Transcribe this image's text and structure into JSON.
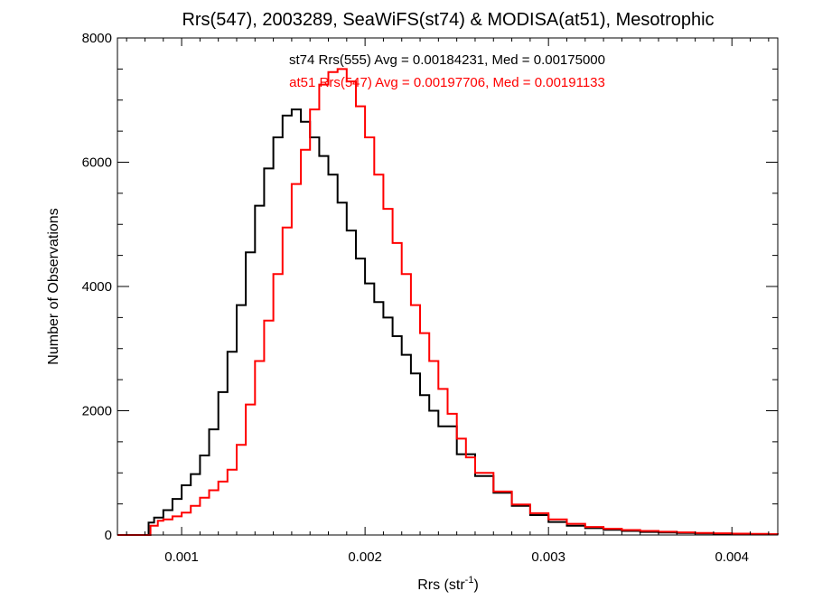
{
  "chart_data": {
    "type": "line",
    "step": true,
    "title": "Rrs(547), 2003289, SeaWiFS(st74) & MODISA(at51), Mesotrophic",
    "xlabel": {
      "base": "Rrs (str",
      "sup": "-1",
      "end": ")"
    },
    "ylabel": "Number of Observations",
    "xlim": [
      0.00065,
      0.00425
    ],
    "ylim": [
      0,
      8000
    ],
    "xticks": [
      {
        "value": 0.001,
        "label": "0.001"
      },
      {
        "value": 0.002,
        "label": "0.002"
      },
      {
        "value": 0.003,
        "label": "0.003"
      },
      {
        "value": 0.004,
        "label": "0.004"
      }
    ],
    "yticks": [
      {
        "value": 0,
        "label": "0"
      },
      {
        "value": 2000,
        "label": "2000"
      },
      {
        "value": 4000,
        "label": "4000"
      },
      {
        "value": 6000,
        "label": "6000"
      },
      {
        "value": 8000,
        "label": "8000"
      }
    ],
    "grid": false,
    "annotations": [
      {
        "text": "st74 Rrs(555) Avg = 0.00184231, Med = 0.00175000",
        "color": "#000000"
      },
      {
        "text": "at51 Rrs(547) Avg = 0.00197706, Med = 0.00191133",
        "color": "#ff0000"
      }
    ],
    "series": [
      {
        "color": "#000000",
        "x": [
          0.00065,
          0.0008,
          0.00082,
          0.00085,
          0.0009,
          0.00095,
          0.001,
          0.00105,
          0.0011,
          0.00115,
          0.0012,
          0.00125,
          0.0013,
          0.00135,
          0.0014,
          0.00145,
          0.0015,
          0.00155,
          0.0016,
          0.00165,
          0.0017,
          0.00175,
          0.0018,
          0.00185,
          0.0019,
          0.00195,
          0.002,
          0.00205,
          0.0021,
          0.00215,
          0.0022,
          0.00225,
          0.0023,
          0.00235,
          0.0024,
          0.0025,
          0.0026,
          0.0027,
          0.0028,
          0.0029,
          0.003,
          0.0031,
          0.0032,
          0.0033,
          0.0034,
          0.0035,
          0.0036,
          0.0037,
          0.0038,
          0.0039,
          0.004,
          0.0041,
          0.0042,
          0.00425
        ],
        "y": [
          0,
          0,
          200,
          280,
          400,
          580,
          800,
          980,
          1280,
          1700,
          2300,
          2950,
          3700,
          4550,
          5300,
          5900,
          6400,
          6750,
          6850,
          6650,
          6400,
          6100,
          5800,
          5350,
          4900,
          4450,
          4050,
          3750,
          3500,
          3200,
          2900,
          2600,
          2250,
          2000,
          1750,
          1300,
          950,
          680,
          470,
          320,
          210,
          150,
          110,
          85,
          65,
          50,
          40,
          32,
          25,
          20,
          15,
          12,
          10,
          8
        ]
      },
      {
        "color": "#ff0000",
        "x": [
          0.00065,
          0.0008,
          0.00083,
          0.00087,
          0.0009,
          0.00095,
          0.001,
          0.00105,
          0.0011,
          0.00115,
          0.0012,
          0.00125,
          0.0013,
          0.00135,
          0.0014,
          0.00145,
          0.0015,
          0.00155,
          0.0016,
          0.00165,
          0.0017,
          0.00175,
          0.0018,
          0.00185,
          0.0019,
          0.00195,
          0.002,
          0.00205,
          0.0021,
          0.00215,
          0.0022,
          0.00225,
          0.0023,
          0.00235,
          0.0024,
          0.00245,
          0.0025,
          0.00255,
          0.0026,
          0.0027,
          0.0028,
          0.0029,
          0.003,
          0.0031,
          0.0032,
          0.0033,
          0.0034,
          0.0035,
          0.0036,
          0.0037,
          0.0038,
          0.0039,
          0.004,
          0.0041,
          0.0042,
          0.00425
        ],
        "y": [
          0,
          0,
          150,
          230,
          250,
          300,
          360,
          470,
          600,
          720,
          860,
          1050,
          1450,
          2100,
          2800,
          3450,
          4200,
          4950,
          5650,
          6200,
          6850,
          7250,
          7450,
          7500,
          7300,
          6900,
          6400,
          5800,
          5250,
          4700,
          4200,
          3700,
          3250,
          2800,
          2350,
          1950,
          1550,
          1250,
          1000,
          700,
          490,
          350,
          250,
          180,
          130,
          100,
          80,
          65,
          52,
          42,
          34,
          27,
          22,
          17,
          13,
          10
        ]
      }
    ]
  }
}
